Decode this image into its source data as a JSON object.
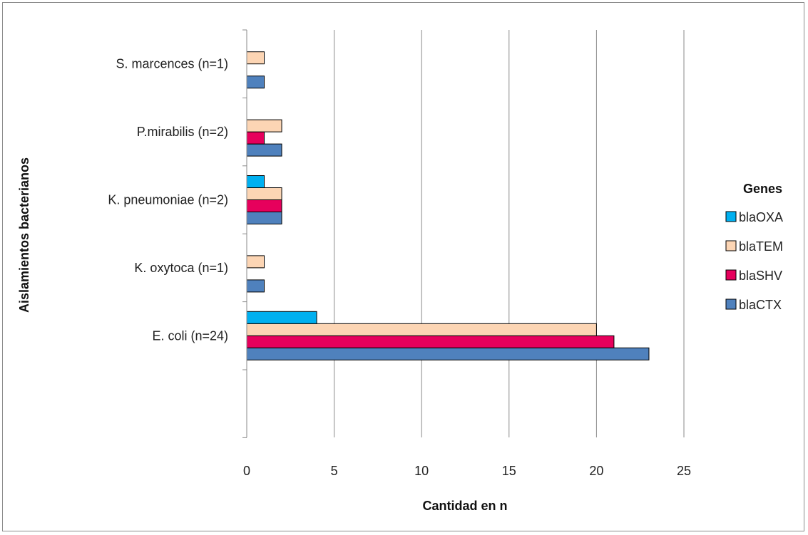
{
  "chart_data": {
    "type": "bar",
    "orientation": "horizontal",
    "categories": [
      "E. coli (n=24)",
      "K. oxytoca (n=1)",
      "K. pneumoniae (n=2)",
      "P.mirabilis (n=2)",
      "S. marcences (n=1)"
    ],
    "series": [
      {
        "name": "blaCTX",
        "color": "#4f81bd",
        "values": [
          23,
          1,
          2,
          2,
          1
        ]
      },
      {
        "name": "blaSHV",
        "color": "#e6005c",
        "values": [
          21,
          0,
          2,
          1,
          0
        ]
      },
      {
        "name": "blaTEM",
        "color": "#fcd5b4",
        "values": [
          20,
          1,
          2,
          2,
          1
        ]
      },
      {
        "name": "blaOXA",
        "color": "#00b0f0",
        "values": [
          4,
          0,
          1,
          0,
          0
        ]
      }
    ],
    "xlabel": "Cantidad en n",
    "ylabel": "Aislamientos  bacterianos",
    "xlim": [
      0,
      25
    ],
    "xticks": [
      0,
      5,
      10,
      15,
      20,
      25
    ],
    "grid": "vertical",
    "legend": {
      "title": "Genes",
      "placement": "right",
      "order": [
        "blaOXA",
        "blaTEM",
        "blaSHV",
        "blaCTX"
      ]
    }
  }
}
